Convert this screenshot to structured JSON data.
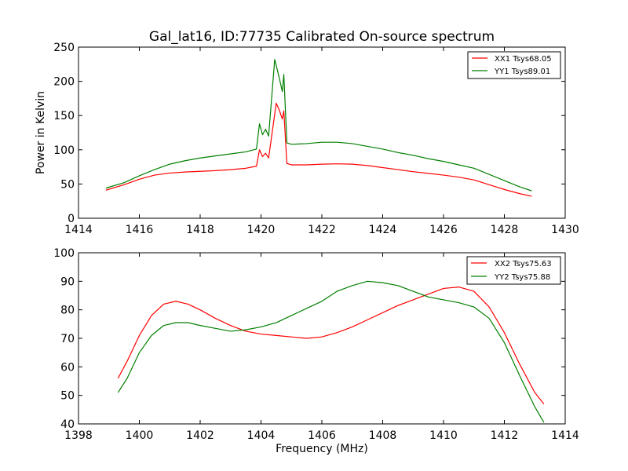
{
  "colors": {
    "red": "#ff0000",
    "green": "#007f00"
  },
  "chart_data": [
    {
      "type": "line",
      "title": "Gal_lat16, ID:77735 Calibrated On-source spectrum",
      "xlabel": "",
      "ylabel": "Power in Kelvin",
      "xlim": [
        1414,
        1430
      ],
      "ylim": [
        0,
        250
      ],
      "xticks": [
        1414,
        1416,
        1418,
        1420,
        1422,
        1424,
        1426,
        1428,
        1430
      ],
      "yticks": [
        0,
        50,
        100,
        150,
        200,
        250
      ],
      "legend_position": "top-right",
      "series": [
        {
          "name": "XX1 Tsys68.05",
          "color": "#ff0000",
          "points": [
            [
              1414.9,
              41
            ],
            [
              1415.5,
              49
            ],
            [
              1416,
              57
            ],
            [
              1416.5,
              63
            ],
            [
              1417,
              66
            ],
            [
              1417.5,
              67.5
            ],
            [
              1418,
              68.5
            ],
            [
              1418.5,
              69.5
            ],
            [
              1419,
              71
            ],
            [
              1419.5,
              73
            ],
            [
              1419.85,
              76
            ],
            [
              1419.95,
              100
            ],
            [
              1420.05,
              90
            ],
            [
              1420.15,
              95
            ],
            [
              1420.25,
              88
            ],
            [
              1420.5,
              168
            ],
            [
              1420.6,
              158
            ],
            [
              1420.7,
              145
            ],
            [
              1420.75,
              157
            ],
            [
              1420.85,
              80
            ],
            [
              1421,
              78
            ],
            [
              1421.5,
              78
            ],
            [
              1422,
              79
            ],
            [
              1422.5,
              79.5
            ],
            [
              1423,
              79
            ],
            [
              1423.5,
              77
            ],
            [
              1424,
              74
            ],
            [
              1424.5,
              71
            ],
            [
              1425,
              68
            ],
            [
              1425.5,
              65.5
            ],
            [
              1426,
              63
            ],
            [
              1426.5,
              60
            ],
            [
              1427,
              56
            ],
            [
              1427.5,
              49
            ],
            [
              1428,
              42
            ],
            [
              1428.5,
              36
            ],
            [
              1428.9,
              32
            ]
          ]
        },
        {
          "name": "YY1 Tsys89.01",
          "color": "#007f00",
          "points": [
            [
              1414.9,
              44
            ],
            [
              1415.5,
              52
            ],
            [
              1416,
              62
            ],
            [
              1416.5,
              71
            ],
            [
              1417,
              79
            ],
            [
              1417.5,
              84
            ],
            [
              1418,
              88
            ],
            [
              1418.5,
              91
            ],
            [
              1419,
              94
            ],
            [
              1419.5,
              97
            ],
            [
              1419.85,
              101
            ],
            [
              1419.95,
              138
            ],
            [
              1420.05,
              122
            ],
            [
              1420.15,
              130
            ],
            [
              1420.25,
              120
            ],
            [
              1420.45,
              232
            ],
            [
              1420.6,
              205
            ],
            [
              1420.7,
              185
            ],
            [
              1420.75,
              210
            ],
            [
              1420.85,
              110
            ],
            [
              1421,
              108
            ],
            [
              1421.5,
              109
            ],
            [
              1422,
              111
            ],
            [
              1422.5,
              111
            ],
            [
              1423,
              109
            ],
            [
              1423.5,
              105
            ],
            [
              1424,
              101
            ],
            [
              1424.5,
              96
            ],
            [
              1425,
              92
            ],
            [
              1425.5,
              87
            ],
            [
              1426,
              83
            ],
            [
              1426.5,
              78
            ],
            [
              1427,
              73
            ],
            [
              1427.5,
              64
            ],
            [
              1428,
              55
            ],
            [
              1428.5,
              46
            ],
            [
              1428.9,
              40
            ]
          ]
        }
      ]
    },
    {
      "type": "line",
      "title": "",
      "xlabel": "Frequency (MHz)",
      "ylabel": "",
      "xlim": [
        1398,
        1414
      ],
      "ylim": [
        40,
        100
      ],
      "xticks": [
        1398,
        1400,
        1402,
        1404,
        1406,
        1408,
        1410,
        1412,
        1414
      ],
      "yticks": [
        40,
        50,
        60,
        70,
        80,
        90,
        100
      ],
      "legend_position": "top-right",
      "series": [
        {
          "name": "XX2 Tsys75.63",
          "color": "#ff0000",
          "points": [
            [
              1399.3,
              56
            ],
            [
              1399.6,
              62
            ],
            [
              1400,
              71
            ],
            [
              1400.4,
              78
            ],
            [
              1400.8,
              82
            ],
            [
              1401.2,
              83
            ],
            [
              1401.6,
              82
            ],
            [
              1402,
              80
            ],
            [
              1402.5,
              77
            ],
            [
              1403,
              74.5
            ],
            [
              1403.5,
              72.5
            ],
            [
              1404,
              71.5
            ],
            [
              1404.5,
              71
            ],
            [
              1405,
              70.5
            ],
            [
              1405.5,
              70
            ],
            [
              1406,
              70.5
            ],
            [
              1406.5,
              72
            ],
            [
              1407,
              74
            ],
            [
              1407.5,
              76.5
            ],
            [
              1408,
              79
            ],
            [
              1408.5,
              81.5
            ],
            [
              1409,
              83.5
            ],
            [
              1409.5,
              85.5
            ],
            [
              1410,
              87.5
            ],
            [
              1410.5,
              88
            ],
            [
              1411,
              86.5
            ],
            [
              1411.5,
              81
            ],
            [
              1412,
              72
            ],
            [
              1412.5,
              61
            ],
            [
              1413,
              51
            ],
            [
              1413.3,
              47
            ]
          ]
        },
        {
          "name": "YY2 Tsys75.88",
          "color": "#007f00",
          "points": [
            [
              1399.3,
              51
            ],
            [
              1399.6,
              56
            ],
            [
              1400,
              65
            ],
            [
              1400.4,
              71
            ],
            [
              1400.8,
              74.5
            ],
            [
              1401.2,
              75.5
            ],
            [
              1401.6,
              75.5
            ],
            [
              1402,
              74.5
            ],
            [
              1402.5,
              73.5
            ],
            [
              1403,
              72.5
            ],
            [
              1403.5,
              73
            ],
            [
              1404,
              74
            ],
            [
              1404.5,
              75.5
            ],
            [
              1405,
              78
            ],
            [
              1405.5,
              80.5
            ],
            [
              1406,
              83
            ],
            [
              1406.5,
              86.5
            ],
            [
              1407,
              88.5
            ],
            [
              1407.5,
              90
            ],
            [
              1408,
              89.5
            ],
            [
              1408.5,
              88.5
            ],
            [
              1409,
              86.5
            ],
            [
              1409.5,
              84.5
            ],
            [
              1410,
              83.5
            ],
            [
              1410.5,
              82.5
            ],
            [
              1411,
              81
            ],
            [
              1411.5,
              77
            ],
            [
              1412,
              68.5
            ],
            [
              1412.5,
              57
            ],
            [
              1413,
              46
            ],
            [
              1413.3,
              40.5
            ]
          ]
        }
      ]
    }
  ]
}
